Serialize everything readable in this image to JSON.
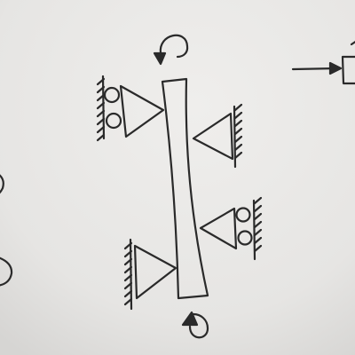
{
  "diagram": {
    "paper_color": "#e9e8e6",
    "ink_color": "#2a2a2a",
    "beam": "vertical-beam",
    "supports": [
      {
        "name": "roller-support-top-left",
        "type": "roller",
        "side": "left"
      },
      {
        "name": "pin-support-top-right",
        "type": "pin",
        "side": "right"
      },
      {
        "name": "roller-support-bottom-right",
        "type": "roller",
        "side": "right"
      },
      {
        "name": "pin-support-bottom-left",
        "type": "pin",
        "side": "left"
      }
    ],
    "moments": [
      {
        "name": "moment-arrow-top",
        "direction": "counterclockwise"
      },
      {
        "name": "moment-arrow-bottom",
        "direction": "clockwise"
      }
    ]
  }
}
